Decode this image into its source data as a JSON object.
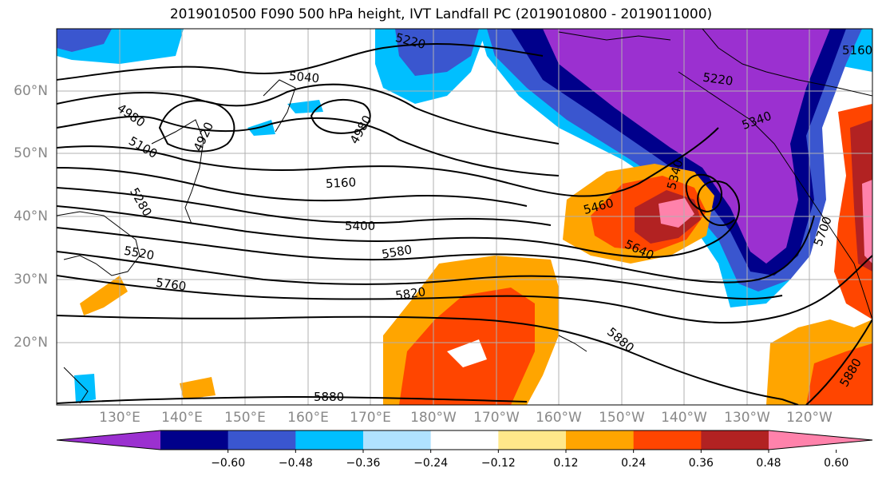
{
  "title": "2019010500 F090 500 hPa height, IVT Landfall PC (2019010800 - 2019011000)",
  "lat_labels": [
    "60°N",
    "50°N",
    "40°N",
    "30°N",
    "20°N"
  ],
  "lon_labels": [
    "130°E",
    "140°E",
    "150°E",
    "160°E",
    "170°E",
    "180°W",
    "170°W",
    "160°W",
    "150°W",
    "140°W",
    "130°W",
    "120°W"
  ],
  "contour_labels": [
    "5220",
    "5040",
    "4980",
    "4920",
    "4980",
    "5100",
    "5160",
    "5280",
    "5400",
    "5520",
    "5580",
    "5760",
    "5820",
    "5460",
    "5340",
    "5640",
    "5700",
    "5880",
    "5880",
    "5880",
    "5220",
    "5160",
    "5340"
  ],
  "colorbar": {
    "colors": [
      "#9b30d0",
      "#00008b",
      "#3a56cf",
      "#00bfff",
      "#b0e2ff",
      "#ffffff",
      "#ffe88a",
      "#ffa500",
      "#ff4500",
      "#b22222",
      "#ff82ab"
    ],
    "ticks": [
      "−0.60",
      "−0.48",
      "−0.36",
      "−0.24",
      "−0.12",
      "0.12",
      "0.24",
      "0.36",
      "0.48",
      "0.60"
    ]
  }
}
